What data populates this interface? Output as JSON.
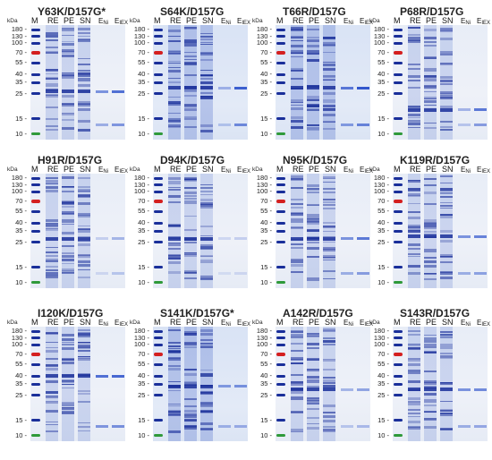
{
  "panels": [
    {
      "title": "Y63K/D157G*",
      "kda_label": "kDa",
      "marker_label": "M",
      "lanes": [
        "RE",
        "PE",
        "SN"
      ],
      "purified_lanes": [
        {
          "main": "E",
          "sub": "Ni"
        },
        {
          "main": "E",
          "sub": "IEX"
        }
      ],
      "mw_labels": [
        "180 -",
        "130 -",
        "100 -",
        "70 -",
        "55 -",
        "40 -",
        "35 -",
        "25 -",
        "15 -",
        "10 -"
      ]
    },
    {
      "title": "S64K/D157G",
      "kda_label": "kDa",
      "marker_label": "M",
      "lanes": [
        "RE",
        "PE",
        "SN"
      ],
      "purified_lanes": [
        {
          "main": "E",
          "sub": "Ni"
        },
        {
          "main": "E",
          "sub": "IEX"
        }
      ],
      "mw_labels": [
        "180 -",
        "130 -",
        "100 -",
        "70 -",
        "55 -",
        "40 -",
        "35 -",
        "25 -",
        "15 -",
        "10 -"
      ]
    },
    {
      "title": "T66R/D157G",
      "kda_label": "kDa",
      "marker_label": "M",
      "lanes": [
        "RE",
        "PE",
        "SN"
      ],
      "purified_lanes": [
        {
          "main": "E",
          "sub": "Ni"
        },
        {
          "main": "E",
          "sub": "IEX"
        }
      ],
      "mw_labels": [
        "180 -",
        "130 -",
        "100 -",
        "70 -",
        "55 -",
        "40 -",
        "35 -",
        "25 -",
        "15 -",
        "10 -"
      ]
    },
    {
      "title": "P68R/D157G",
      "kda_label": "kDa",
      "marker_label": "M",
      "lanes": [
        "RE",
        "PE",
        "SN"
      ],
      "purified_lanes": [
        {
          "main": "E",
          "sub": "Ni"
        },
        {
          "main": "E",
          "sub": "IEX"
        }
      ],
      "mw_labels": [
        "180 -",
        "130 -",
        "100 -",
        "70 -",
        "55 -",
        "40 -",
        "35 -",
        "25 -",
        "15 -",
        "10 -"
      ]
    },
    {
      "title": "H91R/D157G",
      "kda_label": "kDa",
      "marker_label": "M",
      "lanes": [
        "RE",
        "PE",
        "SN"
      ],
      "purified_lanes": [
        {
          "main": "E",
          "sub": "Ni"
        },
        {
          "main": "E",
          "sub": "IEX"
        }
      ],
      "mw_labels": [
        "180 -",
        "130 -",
        "100 -",
        "70 -",
        "55 -",
        "40 -",
        "35 -",
        "25 -",
        "15 -",
        "10 -"
      ]
    },
    {
      "title": "D94K/D157G",
      "kda_label": "kDa",
      "marker_label": "M",
      "lanes": [
        "RE",
        "PE",
        "SN"
      ],
      "purified_lanes": [
        {
          "main": "E",
          "sub": "Ni"
        },
        {
          "main": "E",
          "sub": "IEX"
        }
      ],
      "mw_labels": [
        "180 -",
        "130 -",
        "100 -",
        "70 -",
        "55 -",
        "40 -",
        "35 -",
        "25 -",
        "15 -",
        "10 -"
      ]
    },
    {
      "title": "N95K/D157G",
      "kda_label": "kDa",
      "marker_label": "M",
      "lanes": [
        "RE",
        "PE",
        "SN"
      ],
      "purified_lanes": [
        {
          "main": "E",
          "sub": "Ni"
        },
        {
          "main": "E",
          "sub": "IEX"
        }
      ],
      "mw_labels": [
        "180 -",
        "130 -",
        "100 -",
        "70 -",
        "55 -",
        "40 -",
        "35 -",
        "25 -",
        "15 -",
        "10 -"
      ]
    },
    {
      "title": "K119R/D157G",
      "kda_label": "kDa",
      "marker_label": "M",
      "lanes": [
        "RE",
        "PE",
        "SN"
      ],
      "purified_lanes": [
        {
          "main": "E",
          "sub": "Ni"
        },
        {
          "main": "E",
          "sub": "IEX"
        }
      ],
      "mw_labels": [
        "180 -",
        "130 -",
        "100 -",
        "70 -",
        "55 -",
        "40 -",
        "35 -",
        "25 -",
        "15 -",
        "10 -"
      ]
    },
    {
      "title": "I120K/D157G",
      "kda_label": "kDa",
      "marker_label": "M",
      "lanes": [
        "RE",
        "PE",
        "SN"
      ],
      "purified_lanes": [
        {
          "main": "E",
          "sub": "Ni"
        },
        {
          "main": "E",
          "sub": "IEX"
        }
      ],
      "mw_labels": [
        "180 -",
        "130 -",
        "100 -",
        "70 -",
        "55 -",
        "40 -",
        "35 -",
        "25 -",
        "15 -",
        "10 -"
      ]
    },
    {
      "title": "S141K/D157G*",
      "kda_label": "kDa",
      "marker_label": "M",
      "lanes": [
        "RE",
        "PE",
        "SN"
      ],
      "purified_lanes": [
        {
          "main": "E",
          "sub": "Ni"
        },
        {
          "main": "E",
          "sub": "IEX"
        }
      ],
      "mw_labels": [
        "180 -",
        "130 -",
        "100 -",
        "70 -",
        "55 -",
        "40 -",
        "35 -",
        "25 -",
        "15 -",
        "10 -"
      ]
    },
    {
      "title": "A142R/D157G",
      "kda_label": "kDa",
      "marker_label": "M",
      "lanes": [
        "RE",
        "PE",
        "SN"
      ],
      "purified_lanes": [
        {
          "main": "E",
          "sub": "Ni"
        },
        {
          "main": "E",
          "sub": "IEX"
        }
      ],
      "mw_labels": [
        "180 -",
        "130 -",
        "100 -",
        "70 -",
        "55 -",
        "40 -",
        "35 -",
        "25 -",
        "15 -",
        "10 -"
      ]
    },
    {
      "title": "S143R/D157G",
      "kda_label": "kDa",
      "marker_label": "M",
      "lanes": [
        "RE",
        "PE",
        "SN"
      ],
      "purified_lanes": [
        {
          "main": "E",
          "sub": "Ni"
        },
        {
          "main": "E",
          "sub": "IEX"
        }
      ],
      "mw_labels": [
        "180 -",
        "130 -",
        "100 -",
        "70 -",
        "55 -",
        "40 -",
        "35 -",
        "25 -",
        "15 -",
        "10 -"
      ]
    }
  ],
  "colors": {
    "stain": "#2b4fc4",
    "stain_dark": "#1a2f9a",
    "marker_red": "#d42020",
    "marker_green": "#2f9a3a",
    "gel_bg": "#e9eef7"
  }
}
